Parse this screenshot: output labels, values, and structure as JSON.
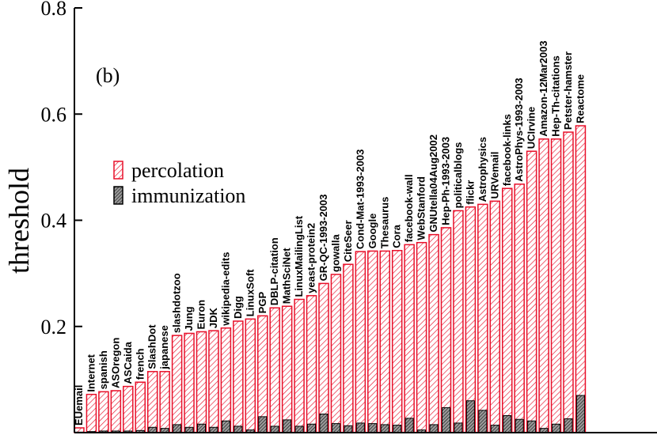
{
  "chart_data": {
    "type": "bar",
    "panel_label": "(b)",
    "ylabel": "threshold",
    "xlabel": "",
    "ylim": [
      0,
      0.8
    ],
    "yticks": [
      0.2,
      0.4,
      0.6,
      0.8
    ],
    "ytick_labels": [
      "0.2",
      "0.4",
      "0.6",
      "0.8"
    ],
    "legend": {
      "position": "middle-left",
      "entries": [
        "percolation",
        "immunization"
      ]
    },
    "colors": {
      "percolation": "#e8102a",
      "immunization": "#000000",
      "immunization_fill": "#888888"
    },
    "categories": [
      "EUemail",
      "Internet",
      "spanish",
      "ASOregon",
      "ASCaida",
      "french",
      "SlashDot",
      "japanese",
      "slashdotzoo",
      "Jung",
      "Euron",
      "JDK",
      "wikipedia-edits",
      "Digg",
      "LinuxSoft",
      "PGP",
      "DBLP-citation",
      "MathSciNet",
      "LinuxMailingList",
      "yeast-protein2",
      "GR-QC-1993-2003",
      "gowalla",
      "CiteSeer",
      "Cond-Mat-1993-2003",
      "Google",
      "Thesaurus",
      "Cora",
      "facebook-wall",
      "WebStanford",
      "GNUtella04Aug2002",
      "Hep-Ph-1993-2003",
      "politicalblogs",
      "flickr",
      "Astrophysics",
      "URVemail",
      "facebook-links",
      "AstroPhys-1993-2003",
      "UCIrvine",
      "Amazon-12Mar2003",
      "Hep-Th-citations",
      "Petster-hamster",
      "Reactome"
    ],
    "series": [
      {
        "name": "percolation",
        "values": [
          0.009,
          0.072,
          0.077,
          0.079,
          0.087,
          0.095,
          0.115,
          0.115,
          0.183,
          0.187,
          0.19,
          0.192,
          0.197,
          0.21,
          0.214,
          0.22,
          0.235,
          0.238,
          0.251,
          0.258,
          0.281,
          0.298,
          0.317,
          0.341,
          0.342,
          0.342,
          0.343,
          0.354,
          0.358,
          0.373,
          0.386,
          0.418,
          0.425,
          0.43,
          0.436,
          0.46,
          0.468,
          0.53,
          0.553,
          0.553,
          0.566,
          0.578
        ]
      },
      {
        "name": "immunization",
        "values": [
          0.001,
          0.002,
          0.003,
          0.003,
          0.003,
          0.004,
          0.01,
          0.008,
          0.015,
          0.01,
          0.016,
          0.01,
          0.022,
          0.012,
          0.005,
          0.03,
          0.012,
          0.024,
          0.012,
          0.016,
          0.035,
          0.017,
          0.013,
          0.018,
          0.017,
          0.015,
          0.014,
          0.027,
          0.005,
          0.015,
          0.047,
          0.018,
          0.06,
          0.042,
          0.014,
          0.032,
          0.025,
          0.022,
          0.008,
          0.016,
          0.026,
          0.07
        ]
      }
    ]
  }
}
